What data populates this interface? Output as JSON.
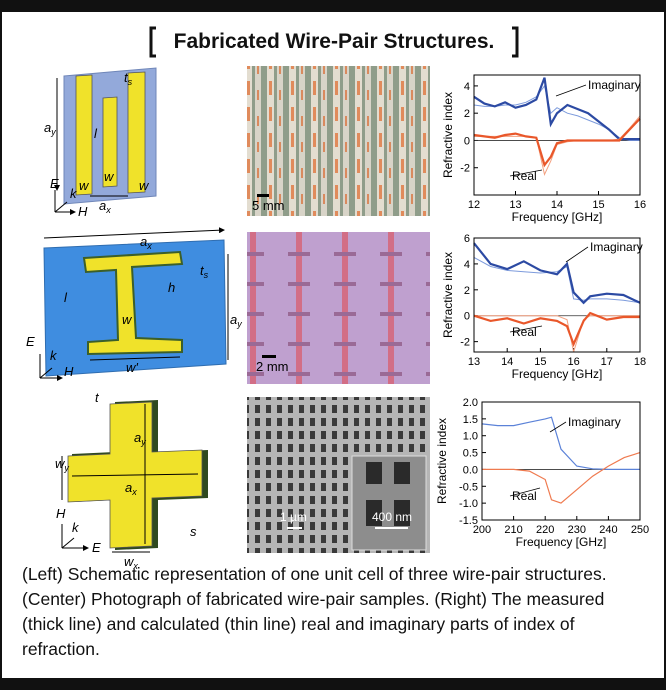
{
  "header": {
    "title": "Fabricated Wire-Pair Structures."
  },
  "schematics": [
    {
      "labels": [
        {
          "text": "t",
          "sub": "s"
        },
        {
          "text": "a",
          "sub": "y"
        },
        {
          "text": "l"
        },
        {
          "text": "w"
        },
        {
          "text": "w"
        },
        {
          "text": "w"
        },
        {
          "text": "a",
          "sub": "x"
        },
        {
          "text": "E"
        },
        {
          "text": "k"
        },
        {
          "text": "H"
        }
      ]
    },
    {
      "labels": [
        {
          "text": "a",
          "sub": "x"
        },
        {
          "text": "t",
          "sub": "s"
        },
        {
          "text": "h"
        },
        {
          "text": "l"
        },
        {
          "text": "w"
        },
        {
          "text": "a",
          "sub": "y"
        },
        {
          "text": "w'"
        },
        {
          "text": "E"
        },
        {
          "text": "k"
        },
        {
          "text": "H"
        }
      ]
    },
    {
      "labels": [
        {
          "text": "t"
        },
        {
          "text": "w",
          "sub": "y"
        },
        {
          "text": "a",
          "sub": "y"
        },
        {
          "text": "a",
          "sub": "x"
        },
        {
          "text": "s"
        },
        {
          "text": "w",
          "sub": "x"
        },
        {
          "text": "H"
        },
        {
          "text": "k"
        },
        {
          "text": "E"
        }
      ]
    }
  ],
  "photos": [
    {
      "scale_bars": [
        "5 mm"
      ]
    },
    {
      "scale_bars": [
        "2 mm"
      ]
    },
    {
      "scale_bars": [
        "1 µm",
        "400 nm"
      ]
    }
  ],
  "chart_data": [
    {
      "type": "line",
      "x_label": "Frequency [GHz]",
      "y_label": "Refractive index",
      "x": [
        12,
        12.25,
        12.5,
        12.75,
        13,
        13.25,
        13.5,
        13.7,
        13.85,
        14,
        14.25,
        14.5,
        14.75,
        15,
        15.25,
        15.5,
        15.75,
        16
      ],
      "series": [
        {
          "color": "#7d9bdc",
          "width": 1,
          "values": [
            2.6,
            2.5,
            2.5,
            2.6,
            2.6,
            2.8,
            3.2,
            4.0,
            2.0,
            2.4,
            2.0,
            1.8,
            1.5,
            1.2,
            0.8,
            0.2,
            0,
            0
          ]
        },
        {
          "color": "#2c4aa3",
          "width": 2.2,
          "values": [
            3.2,
            2.7,
            2.5,
            2.8,
            2.4,
            2.6,
            3.0,
            4.6,
            1.2,
            2.0,
            2.6,
            2.3,
            2.0,
            1.4,
            0.8,
            0.1,
            0.1,
            0.1
          ]
        },
        {
          "color": "#f3a07f",
          "width": 1,
          "values": [
            0.3,
            0.3,
            0.3,
            0.3,
            0.3,
            0.3,
            0.2,
            -2.5,
            -1.5,
            -0.3,
            -0.1,
            0,
            0,
            0,
            0,
            0.1,
            0.9,
            1.8
          ]
        },
        {
          "color": "#e9572a",
          "width": 2.2,
          "values": [
            0.4,
            0.3,
            0.2,
            0.4,
            0.5,
            0.3,
            0.2,
            -1.8,
            -1.2,
            -0.2,
            0,
            0,
            0,
            0,
            0,
            0,
            0.8,
            1.6
          ]
        }
      ],
      "annotations": [
        "Imaginary",
        "Real"
      ],
      "xlim": [
        12,
        16
      ],
      "xticks": [
        12,
        13,
        14,
        15,
        16
      ],
      "ylim": [
        -4,
        4.8
      ],
      "yticks": [
        -2,
        0,
        2,
        4
      ]
    },
    {
      "type": "line",
      "x_label": "Frequency [GHz]",
      "y_label": "Refractive index",
      "x": [
        13,
        13.5,
        14,
        14.5,
        15,
        15.5,
        15.8,
        16,
        16.3,
        16.5,
        17,
        17.5,
        18
      ],
      "series": [
        {
          "color": "#7d9bdc",
          "width": 1,
          "values": [
            4.5,
            3.8,
            3.5,
            3.4,
            3.3,
            3.4,
            3.8,
            1.3,
            1.2,
            1.3,
            1.3,
            1.2,
            1.0
          ]
        },
        {
          "color": "#2c4aa3",
          "width": 2.2,
          "values": [
            5.6,
            4.0,
            3.6,
            4.2,
            3.5,
            3.2,
            4.0,
            1.8,
            1.0,
            1.5,
            1.7,
            1.6,
            1.0
          ]
        },
        {
          "color": "#f3a07f",
          "width": 1,
          "values": [
            0,
            0,
            0,
            0,
            0,
            0,
            -0.3,
            -2.8,
            -0.3,
            0,
            0,
            0,
            0
          ]
        },
        {
          "color": "#e9572a",
          "width": 2.2,
          "values": [
            0,
            -0.4,
            -0.2,
            -0.6,
            -0.2,
            -0.4,
            -0.8,
            -2.2,
            -0.4,
            0.2,
            -0.3,
            -0.1,
            -0.1
          ]
        }
      ],
      "annotations": [
        "Imaginary",
        "Real"
      ],
      "xlim": [
        13,
        18
      ],
      "xticks": [
        13,
        14,
        15,
        16,
        17,
        18
      ],
      "ylim": [
        -2.8,
        6
      ],
      "yticks": [
        -2,
        0,
        2,
        4,
        6
      ]
    },
    {
      "type": "line",
      "x_label": "Frequency [GHz]",
      "y_label": "Refractive index",
      "x": [
        200,
        205,
        210,
        215,
        220,
        222,
        225,
        230,
        235,
        240,
        245,
        250
      ],
      "series": [
        {
          "color": "#5b82d8",
          "width": 1.2,
          "values": [
            1.35,
            1.3,
            1.3,
            1.4,
            1.5,
            1.55,
            0.6,
            0.1,
            0.02,
            0,
            0,
            0
          ]
        },
        {
          "color": "#ef7a4f",
          "width": 1.2,
          "values": [
            0,
            0,
            0,
            -0.05,
            -0.3,
            -0.9,
            -1.0,
            -0.6,
            -0.2,
            0.1,
            0.35,
            0.5
          ]
        }
      ],
      "annotations": [
        "Imaginary",
        "Real"
      ],
      "xlim": [
        200,
        250
      ],
      "xticks": [
        200,
        210,
        220,
        230,
        240,
        250
      ],
      "ylim": [
        -1.5,
        2.0
      ],
      "yticks": [
        {
          "value": 2,
          "label": "2.0"
        },
        1.5,
        {
          "value": 1,
          "label": "1.0"
        },
        0.5,
        {
          "value": 0,
          "label": "0.0"
        },
        -0.5,
        {
          "value": -1,
          "label": "-1.0"
        },
        -1.5
      ]
    }
  ],
  "caption": "(Left) Schematic representation of one unit cell of three wire-pair structures. (Center) Photograph of fabricated wire-pair samples. (Right) The measured (thick line) and calculated (thin line) real and imaginary parts of index of refraction."
}
